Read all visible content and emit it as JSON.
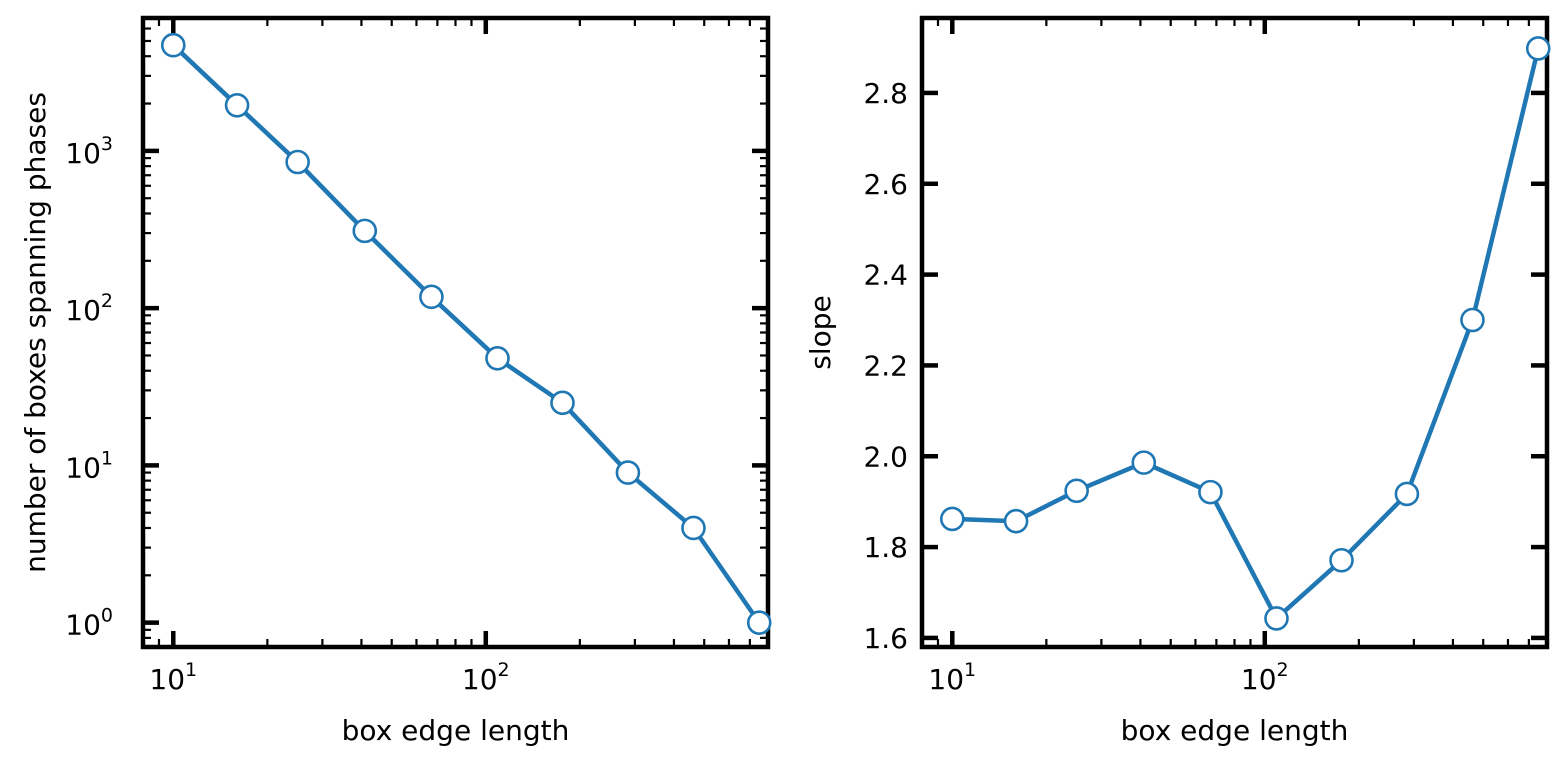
{
  "chart_data": [
    {
      "type": "line",
      "xlabel": "box edge length",
      "ylabel": "number of boxes spanning phases",
      "xscale": "log",
      "yscale": "log",
      "xlim": [
        8,
        800
      ],
      "ylim": [
        0.7,
        7000
      ],
      "xticks": [
        {
          "value": 10,
          "base": "10",
          "exp": "1"
        },
        {
          "value": 100,
          "base": "10",
          "exp": "2"
        }
      ],
      "yticks": [
        {
          "value": 1,
          "base": "10",
          "exp": "0"
        },
        {
          "value": 10,
          "base": "10",
          "exp": "1"
        },
        {
          "value": 100,
          "base": "10",
          "exp": "2"
        },
        {
          "value": 1000,
          "base": "10",
          "exp": "3"
        }
      ],
      "grid": false,
      "color": "#1f77b4",
      "x": [
        10,
        16,
        25,
        41,
        67,
        109,
        176,
        285,
        462,
        750
      ],
      "values": [
        4700,
        1950,
        850,
        310,
        118,
        48,
        25,
        9,
        4,
        1
      ]
    },
    {
      "type": "line",
      "xlabel": "box edge length",
      "ylabel": "slope",
      "xscale": "log",
      "yscale": "linear",
      "xlim": [
        8,
        800
      ],
      "ylim": [
        1.58,
        2.965
      ],
      "xticks": [
        {
          "value": 10,
          "base": "10",
          "exp": "1"
        },
        {
          "value": 100,
          "base": "10",
          "exp": "2"
        }
      ],
      "yticks": [
        {
          "value": 1.6,
          "label": "1.6"
        },
        {
          "value": 1.8,
          "label": "1.8"
        },
        {
          "value": 2.0,
          "label": "2.0"
        },
        {
          "value": 2.2,
          "label": "2.2"
        },
        {
          "value": 2.4,
          "label": "2.4"
        },
        {
          "value": 2.6,
          "label": "2.6"
        },
        {
          "value": 2.8,
          "label": "2.8"
        }
      ],
      "grid": false,
      "color": "#1f77b4",
      "x": [
        10,
        16,
        25,
        41,
        67,
        109,
        176,
        285,
        462,
        750
      ],
      "values": [
        1.862,
        1.857,
        1.924,
        1.986,
        1.921,
        1.643,
        1.771,
        1.917,
        2.3,
        2.898
      ]
    }
  ]
}
